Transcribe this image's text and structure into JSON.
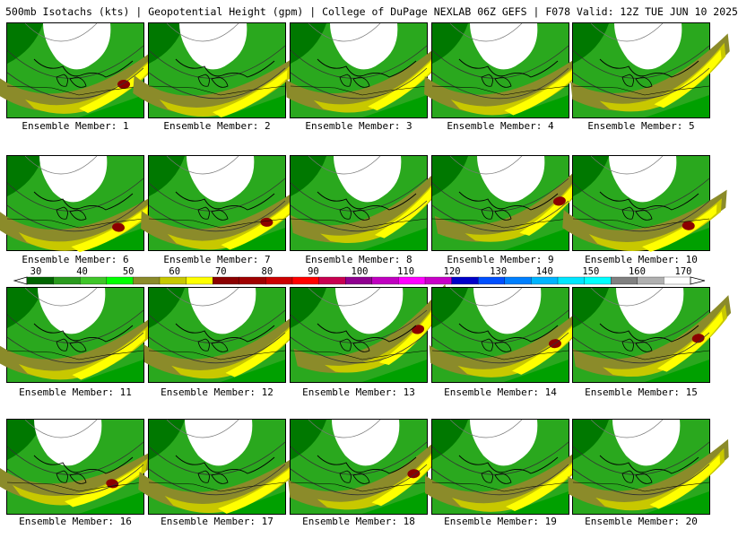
{
  "title": "500mb Isotachs (kts) | Geopotential Height (gpm) | College of DuPage NEXLAB   06Z GEFS | F078 Valid: 12Z TUE JUN 10 2025",
  "colorbar": {
    "labels": [
      "30",
      "40",
      "50",
      "60",
      "70",
      "80",
      "90",
      "100",
      "110",
      "120",
      "130",
      "140",
      "150",
      "160",
      "170"
    ],
    "colors": [
      "#006400",
      "#2a9a1e",
      "#3fc62a",
      "#00ff00",
      "#8b8b2a",
      "#c8c800",
      "#ffff00",
      "#8b0000",
      "#a00000",
      "#cc0000",
      "#ff0000",
      "#c80050",
      "#900090",
      "#c000c0",
      "#ff00ff",
      "#c800c8",
      "#0000c8",
      "#0050ff",
      "#0080ff",
      "#00b4ff",
      "#00e6ff",
      "#00ffff",
      "#808080",
      "#b0b0b0",
      "#ffffff"
    ]
  },
  "members": [
    {
      "label": "Ensemble Member: 1"
    },
    {
      "label": "Ensemble Member: 2"
    },
    {
      "label": "Ensemble Member: 3"
    },
    {
      "label": "Ensemble Member: 4"
    },
    {
      "label": "Ensemble Member: 5"
    },
    {
      "label": "Ensemble Member: 6"
    },
    {
      "label": "Ensemble Member: 7"
    },
    {
      "label": "Ensemble Member: 8"
    },
    {
      "label": "Ensemble Member: 9"
    },
    {
      "label": "Ensemble Member: 10"
    },
    {
      "label": "Ensemble Member: 11"
    },
    {
      "label": "Ensemble Member: 12"
    },
    {
      "label": "Ensemble Member: 13"
    },
    {
      "label": "Ensemble Member: 14"
    },
    {
      "label": "Ensemble Member: 15"
    },
    {
      "label": "Ensemble Member: 16"
    },
    {
      "label": "Ensemble Member: 17"
    },
    {
      "label": "Ensemble Member: 18"
    },
    {
      "label": "Ensemble Member: 19"
    },
    {
      "label": "Ensemble Member: 20"
    }
  ]
}
